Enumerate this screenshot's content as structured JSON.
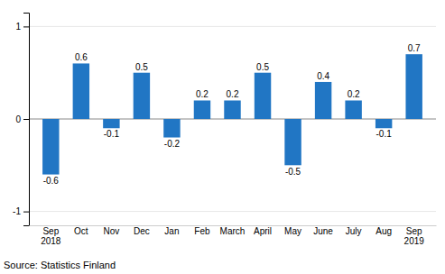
{
  "chart_data": {
    "type": "bar",
    "categories": [
      "Sep\n2018",
      "Oct",
      "Nov",
      "Dec",
      "Jan",
      "Feb",
      "March",
      "April",
      "May",
      "June",
      "July",
      "Aug",
      "Sep\n2019"
    ],
    "values": [
      -0.6,
      0.6,
      -0.1,
      0.5,
      -0.2,
      0.2,
      0.2,
      0.5,
      -0.5,
      0.4,
      0.2,
      -0.1,
      0.7
    ],
    "color": "#2176c4",
    "ylim": [
      -1.15,
      1.15
    ],
    "yticks": [
      -1,
      0,
      1
    ],
    "grid": true,
    "data_labels": true,
    "annotation": "Source: Statistics Finland"
  }
}
